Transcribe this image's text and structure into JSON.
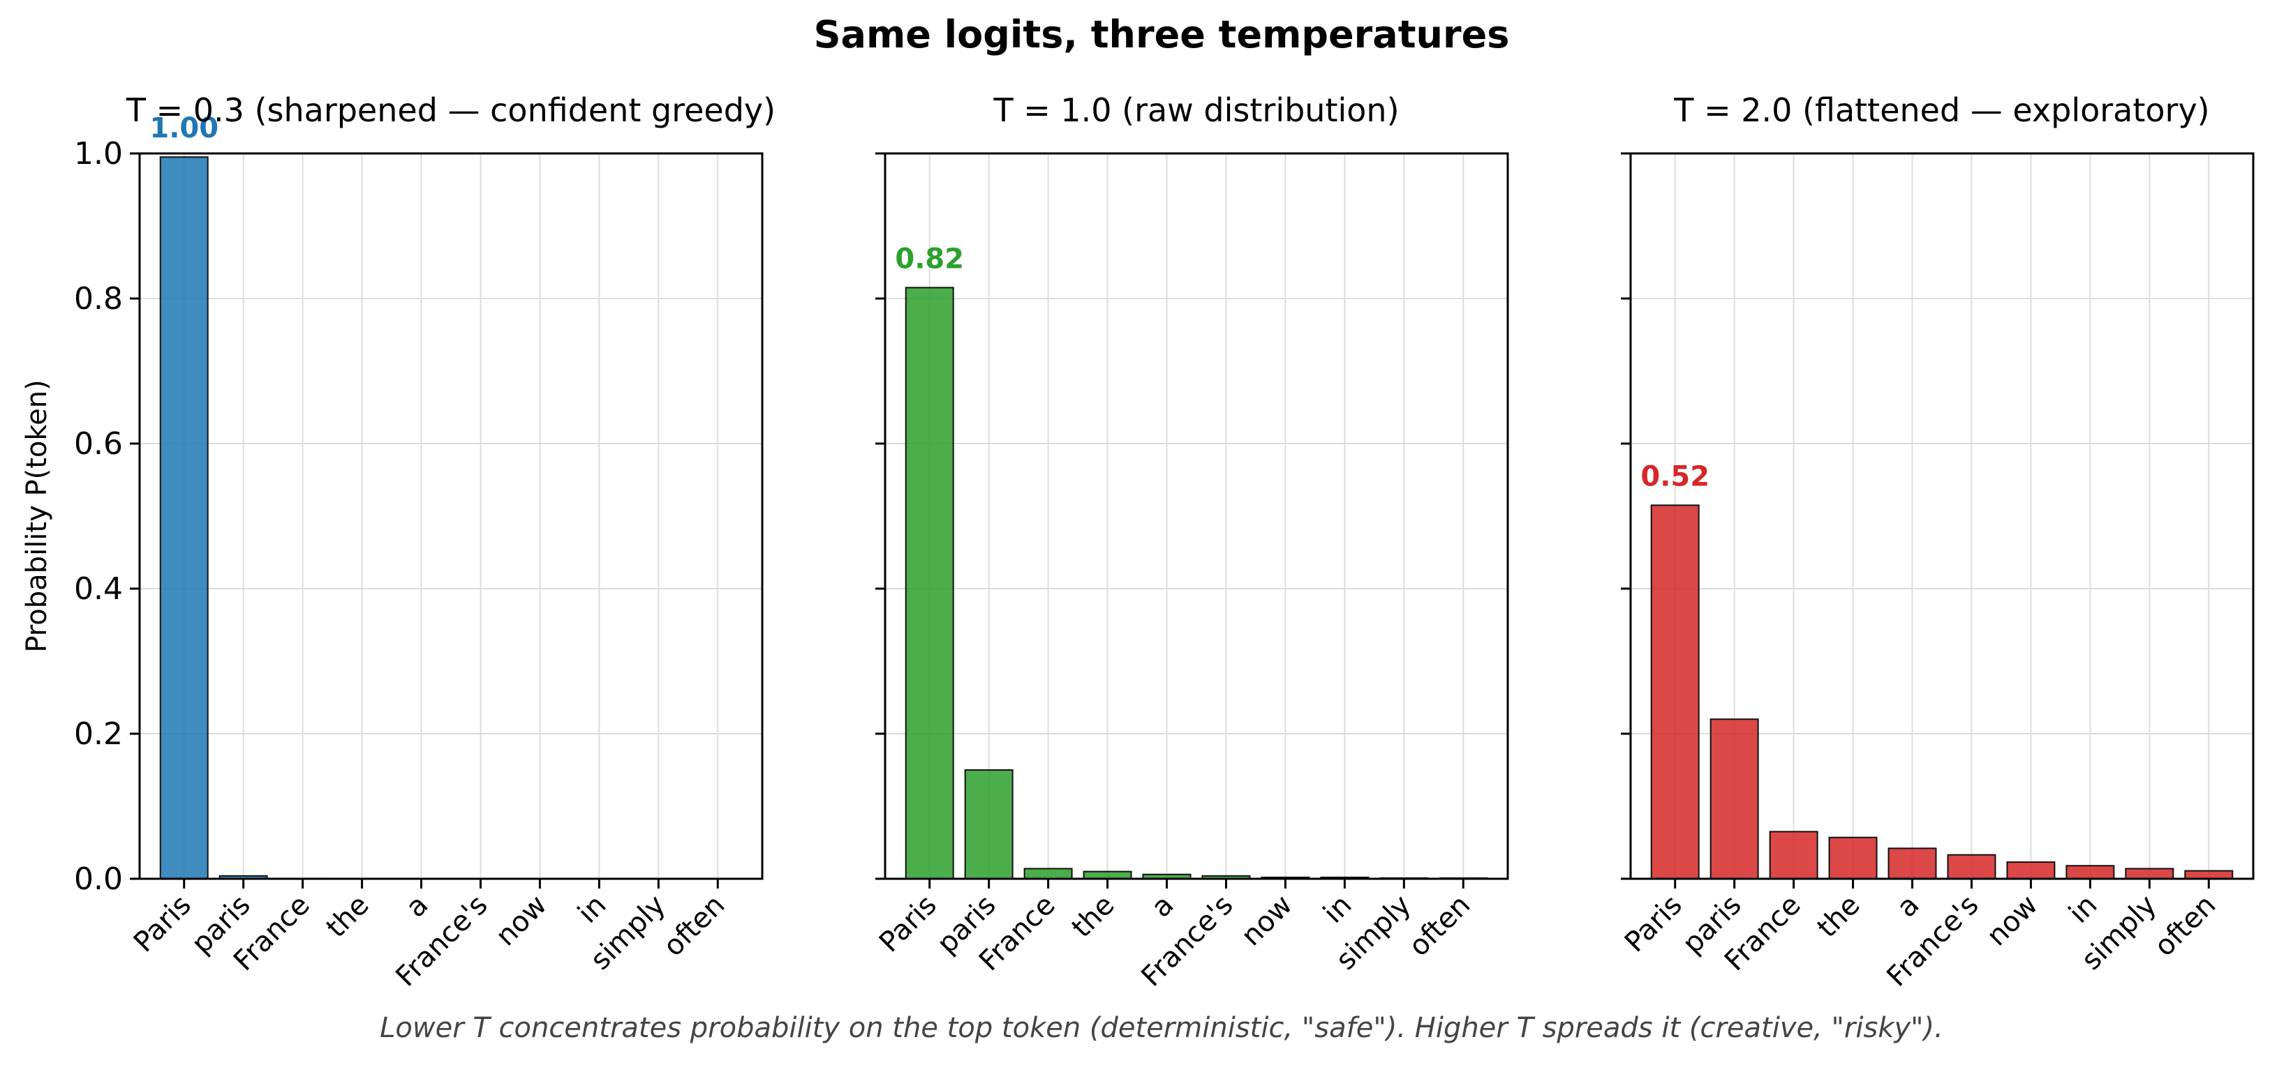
{
  "figure": {
    "title": "Same logits, three temperatures",
    "ylabel": "Probability  P(token)",
    "caption": "Lower T concentrates probability on the top token (deterministic, \"safe\"). Higher T spreads it (creative, \"risky\")."
  },
  "chart_data": [
    {
      "type": "bar",
      "title": "T = 0.3   (sharpened — confident greedy)",
      "categories": [
        "Paris",
        "paris",
        "France",
        "the",
        "a",
        "France's",
        "now",
        "in",
        "simply",
        "often"
      ],
      "values": [
        0.995,
        0.004,
        0.0005,
        0.0003,
        0.0001,
        0.0001,
        0.0,
        0.0,
        0.0,
        0.0
      ],
      "top_label": "1.00",
      "color": "#1f77b4",
      "ylim": [
        0,
        1.0
      ],
      "yticks": [
        "0.0",
        "0.2",
        "0.4",
        "0.6",
        "0.8",
        "1.0"
      ],
      "grid": true
    },
    {
      "type": "bar",
      "title": "T = 1.0   (raw distribution)",
      "categories": [
        "Paris",
        "paris",
        "France",
        "the",
        "a",
        "France's",
        "now",
        "in",
        "simply",
        "often"
      ],
      "values": [
        0.815,
        0.15,
        0.014,
        0.01,
        0.006,
        0.004,
        0.002,
        0.002,
        0.001,
        0.001
      ],
      "top_label": "0.82",
      "color": "#2ca02c",
      "ylim": [
        0,
        1.0
      ],
      "grid": true
    },
    {
      "type": "bar",
      "title": "T = 2.0   (flattened — exploratory)",
      "categories": [
        "Paris",
        "paris",
        "France",
        "the",
        "a",
        "France's",
        "now",
        "in",
        "simply",
        "often"
      ],
      "values": [
        0.515,
        0.22,
        0.065,
        0.057,
        0.042,
        0.033,
        0.023,
        0.018,
        0.014,
        0.011
      ],
      "top_label": "0.52",
      "color": "#d62728",
      "ylim": [
        0,
        1.0
      ],
      "grid": true
    }
  ]
}
